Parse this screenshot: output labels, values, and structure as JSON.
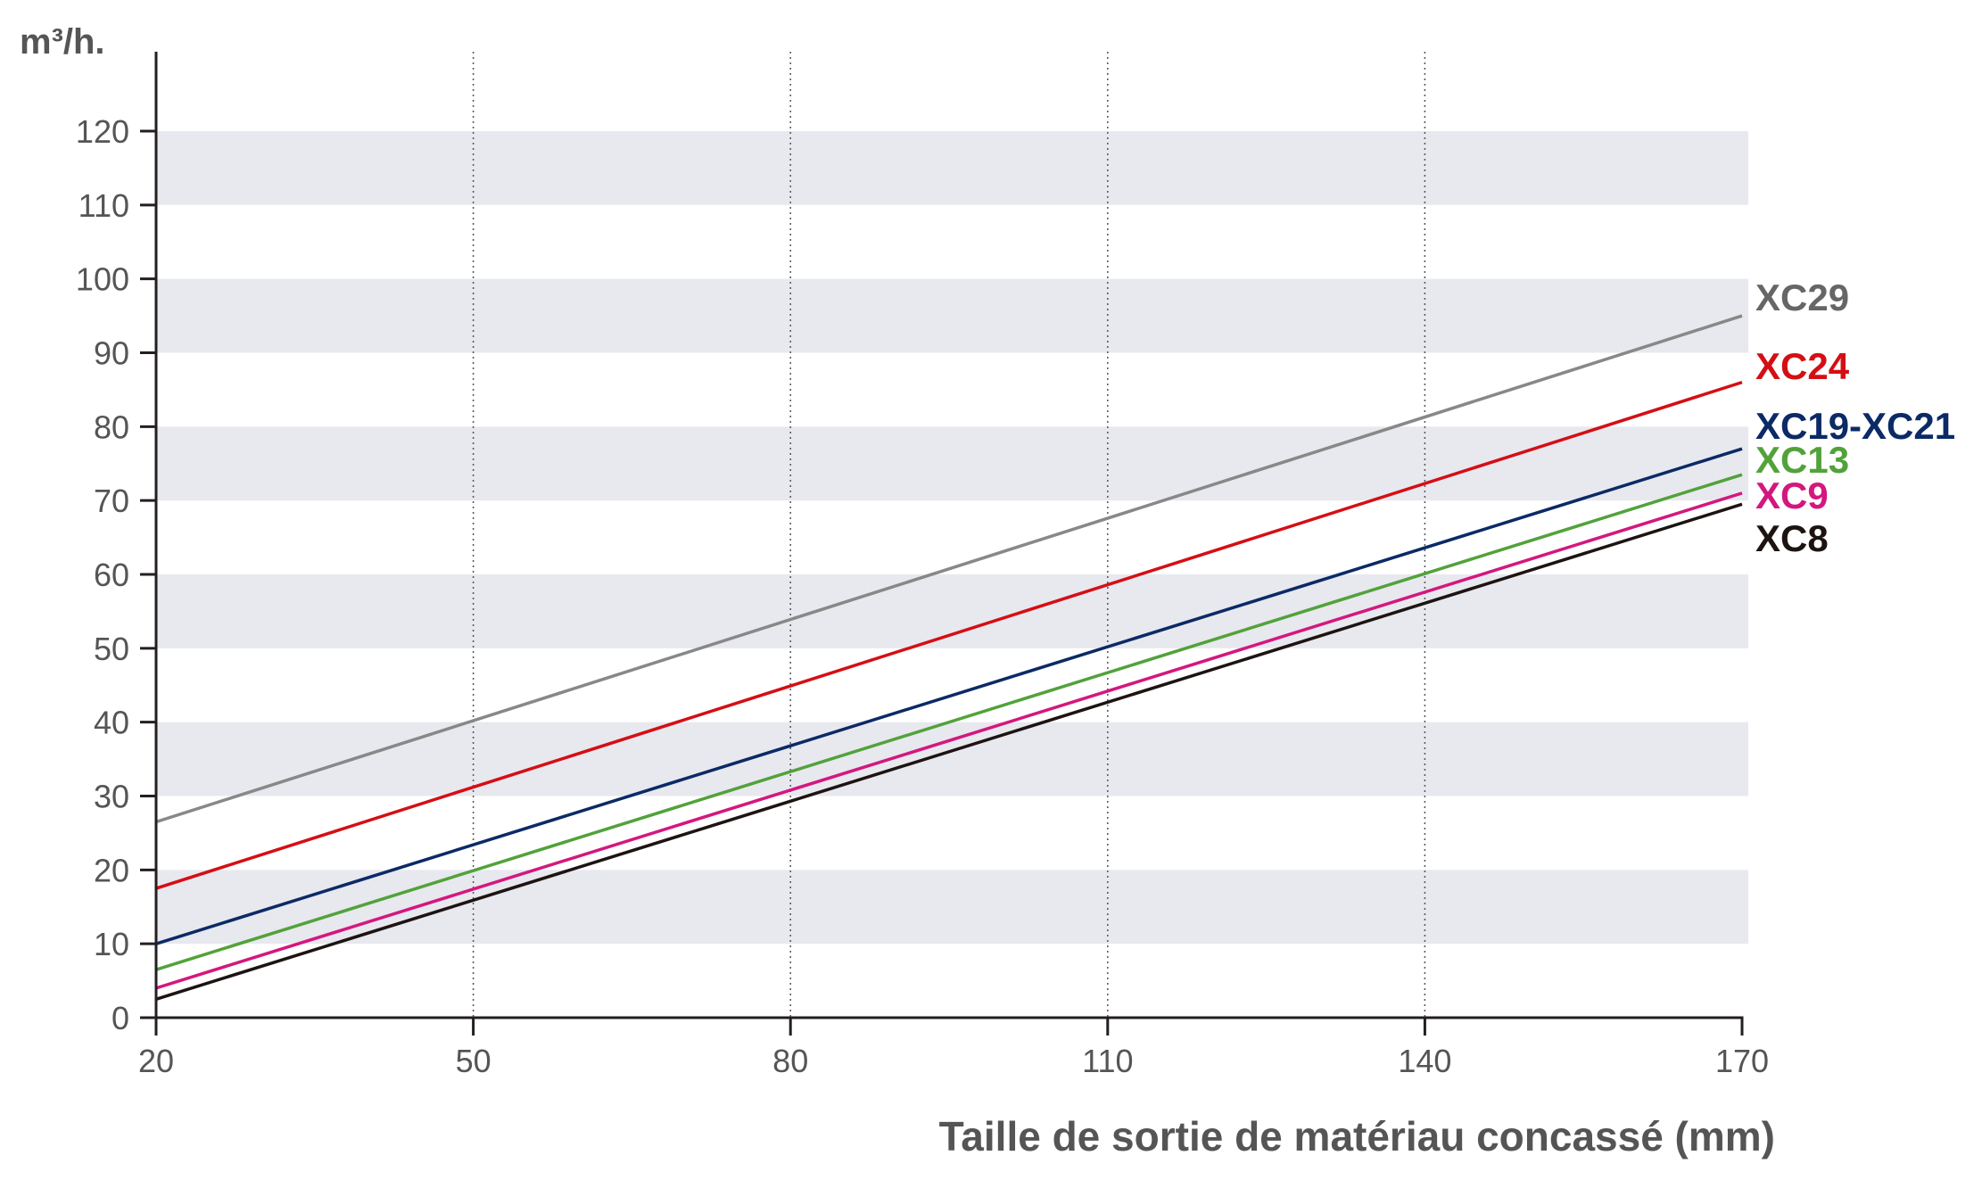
{
  "chart_data": {
    "type": "line",
    "title": "",
    "ylabel": "m³/h.",
    "xlabel": "Taille de sortie de matériau concassé (mm)",
    "xlim": [
      20,
      170
    ],
    "ylim": [
      0,
      120
    ],
    "xticks": [
      20,
      50,
      80,
      110,
      140,
      170
    ],
    "yticks": [
      0,
      10,
      20,
      30,
      40,
      50,
      60,
      70,
      80,
      90,
      100,
      110,
      120
    ],
    "grid": "vertical dotted lines at x ticks, alternating horizontal bands",
    "x": [
      20,
      170
    ],
    "series": [
      {
        "name": "XC29",
        "color": "#888888",
        "label_color": "#666666",
        "values": [
          26.5,
          95
        ]
      },
      {
        "name": "XC24",
        "color": "#d40f14",
        "label_color": "#d40f14",
        "values": [
          17.5,
          86
        ]
      },
      {
        "name": "XC19-XC21",
        "color": "#0b2a66",
        "label_color": "#0b2a66",
        "values": [
          10,
          77
        ]
      },
      {
        "name": "XC13",
        "color": "#52a23a",
        "label_color": "#52a23a",
        "values": [
          6.5,
          73.5
        ]
      },
      {
        "name": "XC9",
        "color": "#d4177e",
        "label_color": "#d4177e",
        "values": [
          4,
          71
        ]
      },
      {
        "name": "XC8",
        "color": "#1d1412",
        "label_color": "#1d1412",
        "values": [
          2.5,
          69.5
        ]
      }
    ],
    "band_color": "#e8e8ef",
    "axis_color": "#231f20"
  }
}
